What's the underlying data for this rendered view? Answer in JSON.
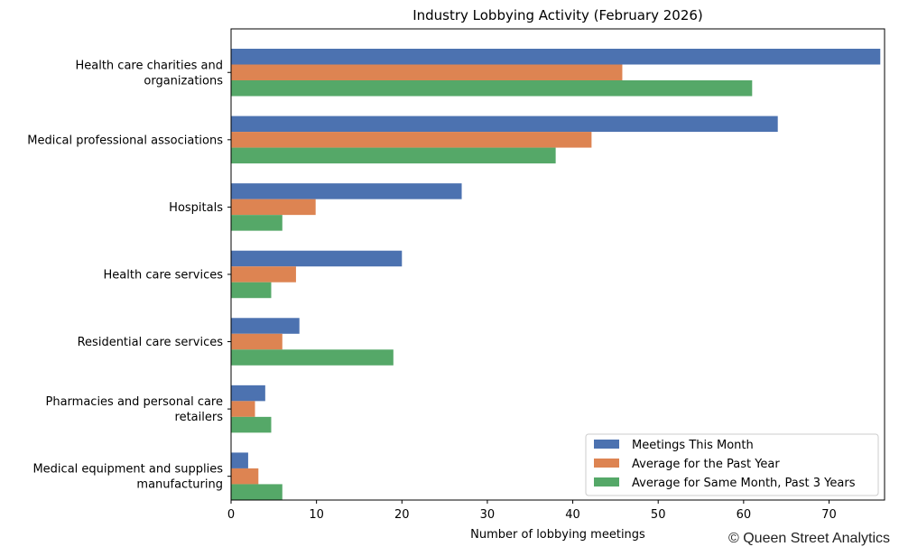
{
  "chart_data": {
    "type": "bar",
    "orientation": "horizontal",
    "title": "Industry Lobbying Activity (February 2026)",
    "xlabel": "Number of lobbying meetings",
    "ylabel": "",
    "xlim": [
      0,
      76.5
    ],
    "xticks": [
      0,
      10,
      20,
      30,
      40,
      50,
      60,
      70
    ],
    "categories": [
      [
        "Health care charities and",
        "organizations"
      ],
      [
        "Medical professional associations"
      ],
      [
        "Hospitals"
      ],
      [
        "Health care services"
      ],
      [
        "Residential care services"
      ],
      [
        "Pharmacies and personal care",
        "retailers"
      ],
      [
        "Medical equipment and supplies",
        "manufacturing"
      ]
    ],
    "series": [
      {
        "name": "Meetings This Month",
        "color": "#4c72b0",
        "values": [
          76,
          64,
          27,
          20,
          8,
          4,
          2
        ]
      },
      {
        "name": "Average for the Past Year",
        "color": "#dd8452",
        "values": [
          45.8,
          42.2,
          9.9,
          7.6,
          6,
          2.8,
          3.2
        ]
      },
      {
        "name": "Average for Same Month, Past 3 Years",
        "color": "#55a868",
        "values": [
          61,
          38,
          6,
          4.7,
          19,
          4.7,
          6
        ]
      }
    ],
    "legend_position": "lower-right",
    "grid": false
  },
  "credit": "© Queen Street Analytics"
}
